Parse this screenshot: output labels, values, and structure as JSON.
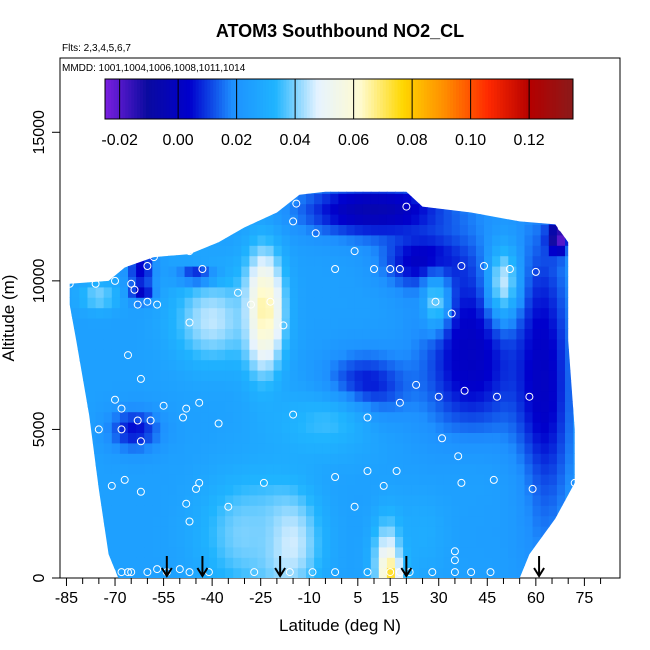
{
  "chart_data": {
    "type": "heatmap",
    "title": "ATOM3 Southbound NO2_CL",
    "flights_note": "Flts: 2,3,4,5,6,7",
    "dates_note": "MMDD: 1001,1004,1006,1008,1011,1014",
    "xlabel": "Latitude (deg N)",
    "ylabel": "Altitude (m)",
    "xlim": [
      -87,
      86
    ],
    "ylim": [
      0,
      17500
    ],
    "x_ticks": [
      -85,
      -70,
      -55,
      -40,
      -25,
      -10,
      5,
      15,
      30,
      45,
      60,
      75
    ],
    "x_tick_labels": [
      "-85",
      "-70",
      "-55",
      "-40",
      "-25",
      "-10",
      "5",
      "15",
      "30",
      "45",
      "60",
      "75"
    ],
    "x_minor_ticks": [
      -80,
      -75,
      -65,
      -60,
      -50,
      -45,
      -35,
      -30,
      -20,
      -15,
      -5,
      0,
      10,
      20,
      25,
      35,
      40,
      50,
      55,
      65,
      70,
      80
    ],
    "y_ticks": [
      0,
      5000,
      10000,
      15000
    ],
    "y_tick_labels": [
      "0",
      "5000",
      "10000",
      "15000"
    ],
    "colorbar": {
      "min": -0.025,
      "max": 0.135,
      "ticks": [
        -0.02,
        0.0,
        0.02,
        0.04,
        0.06,
        0.08,
        0.1,
        0.12
      ],
      "tick_labels": [
        "-0.02",
        "0.00",
        "0.02",
        "0.04",
        "0.06",
        "0.08",
        "0.10",
        "0.12"
      ],
      "colors": [
        "#7b1fe0",
        "#0a0aa0",
        "#0000cd",
        "#1e90ff",
        "#1fb4ff",
        "#e6f3ff",
        "#fffbd0",
        "#ffd700",
        "#ff8c00",
        "#ff2a00",
        "#b40000",
        "#8b1a1a"
      ]
    },
    "profile_marker_latitudes": [
      -54,
      -43,
      -19,
      20,
      61
    ],
    "domain_outline": [
      [
        -84,
        9900
      ],
      [
        -72,
        10000
      ],
      [
        -67,
        10450
      ],
      [
        -58,
        10800
      ],
      [
        -47,
        10900
      ],
      [
        -38,
        11300
      ],
      [
        -30,
        11800
      ],
      [
        -20,
        12300
      ],
      [
        -13,
        12900
      ],
      [
        -5,
        13000
      ],
      [
        8,
        13000
      ],
      [
        20,
        13000
      ],
      [
        25,
        12500
      ],
      [
        40,
        12300
      ],
      [
        55,
        12000
      ],
      [
        66,
        11900
      ],
      [
        70,
        11300
      ],
      [
        70,
        8000
      ],
      [
        72,
        5000
      ],
      [
        72,
        3200
      ],
      [
        66,
        2000
      ],
      [
        58,
        800
      ],
      [
        55,
        0
      ],
      [
        -69,
        0
      ],
      [
        -72,
        800
      ],
      [
        -75,
        3000
      ],
      [
        -78,
        5500
      ],
      [
        -82,
        8000
      ],
      [
        -84,
        9200
      ]
    ],
    "field_background": 0.025,
    "field_features": [
      {
        "lat": -24,
        "alt": 9000,
        "value": 0.07,
        "lat_radius": 6,
        "alt_radius": 2000
      },
      {
        "lat": -40,
        "alt": 8700,
        "value": 0.045,
        "lat_radius": 12,
        "alt_radius": 1500
      },
      {
        "lat": -17,
        "alt": 1200,
        "value": 0.05,
        "lat_radius": 10,
        "alt_radius": 1800
      },
      {
        "lat": -30,
        "alt": 1500,
        "value": 0.04,
        "lat_radius": 14,
        "alt_radius": 2000
      },
      {
        "lat": 15,
        "alt": 500,
        "value": 0.06,
        "lat_radius": 5,
        "alt_radius": 1500
      },
      {
        "lat": 15,
        "alt": 200,
        "value": 0.08,
        "lat_radius": 2,
        "alt_radius": 500
      },
      {
        "lat": 7,
        "alt": 6300,
        "value": 0.0,
        "lat_radius": 13,
        "alt_radius": 1200
      },
      {
        "lat": 40,
        "alt": 7500,
        "value": 0.0,
        "lat_radius": 15,
        "alt_radius": 3500
      },
      {
        "lat": 62,
        "alt": 6500,
        "value": 0.0,
        "lat_radius": 9,
        "alt_radius": 5000
      },
      {
        "lat": 10,
        "alt": 12400,
        "value": -0.005,
        "lat_radius": 22,
        "alt_radius": 900
      },
      {
        "lat": 25,
        "alt": 10700,
        "value": 0.0,
        "lat_radius": 12,
        "alt_radius": 900
      },
      {
        "lat": -64,
        "alt": 5000,
        "value": 0.005,
        "lat_radius": 8,
        "alt_radius": 700
      },
      {
        "lat": -62,
        "alt": 9700,
        "value": 0.0,
        "lat_radius": 4,
        "alt_radius": 400
      },
      {
        "lat": -45,
        "alt": 10200,
        "value": 0.005,
        "lat_radius": 6,
        "alt_radius": 300
      },
      {
        "lat": 50,
        "alt": 10000,
        "value": 0.045,
        "lat_radius": 5,
        "alt_radius": 1300
      },
      {
        "lat": 29,
        "alt": 9300,
        "value": 0.04,
        "lat_radius": 4,
        "alt_radius": 900
      },
      {
        "lat": -5,
        "alt": 5200,
        "value": 0.035,
        "lat_radius": 18,
        "alt_radius": 1200
      },
      {
        "lat": -75,
        "alt": 9500,
        "value": 0.04,
        "lat_radius": 6,
        "alt_radius": 500
      },
      {
        "lat": 67,
        "alt": 11500,
        "value": -0.025,
        "lat_radius": 3,
        "alt_radius": 500
      },
      {
        "lat": 40,
        "alt": 3000,
        "value": 0.025,
        "lat_radius": 18,
        "alt_radius": 2000
      },
      {
        "lat": 25,
        "alt": 1500,
        "value": 0.03,
        "lat_radius": 8,
        "alt_radius": 1500
      },
      {
        "lat": -62,
        "alt": 10500,
        "value": 0.0,
        "lat_radius": 4,
        "alt_radius": 400
      }
    ],
    "observations": [
      [
        -14,
        12600
      ],
      [
        20,
        12500
      ],
      [
        -8,
        11600
      ],
      [
        68,
        11800
      ],
      [
        -47,
        11000
      ],
      [
        -58,
        10800
      ],
      [
        -60,
        10500
      ],
      [
        -15,
        12000
      ],
      [
        4,
        11000
      ],
      [
        10,
        10400
      ],
      [
        -43,
        10400
      ],
      [
        -2,
        10400
      ],
      [
        15,
        10400
      ],
      [
        18,
        10400
      ],
      [
        37,
        10500
      ],
      [
        44,
        10500
      ],
      [
        52,
        10400
      ],
      [
        60,
        10300
      ],
      [
        -84,
        9900
      ],
      [
        -76,
        9900
      ],
      [
        -70,
        10000
      ],
      [
        -65,
        9900
      ],
      [
        -64,
        9700
      ],
      [
        -60,
        9300
      ],
      [
        -57,
        9200
      ],
      [
        -63,
        9200
      ],
      [
        -32,
        9600
      ],
      [
        -28,
        9200
      ],
      [
        -22,
        9300
      ],
      [
        -47,
        8600
      ],
      [
        -18,
        8500
      ],
      [
        29,
        9300
      ],
      [
        34,
        8900
      ],
      [
        -66,
        7500
      ],
      [
        -62,
        6700
      ],
      [
        23,
        6500
      ],
      [
        18,
        5900
      ],
      [
        30,
        6100
      ],
      [
        38,
        6300
      ],
      [
        48,
        6100
      ],
      [
        58,
        6100
      ],
      [
        -70,
        6000
      ],
      [
        -68,
        5700
      ],
      [
        -75,
        5000
      ],
      [
        -68,
        5000
      ],
      [
        -55,
        5800
      ],
      [
        -48,
        5700
      ],
      [
        -44,
        5900
      ],
      [
        -63,
        5300
      ],
      [
        -59,
        5300
      ],
      [
        -49,
        5400
      ],
      [
        -38,
        5200
      ],
      [
        -15,
        5500
      ],
      [
        8,
        5400
      ],
      [
        -62,
        4600
      ],
      [
        31,
        4700
      ],
      [
        36,
        4100
      ],
      [
        8,
        3600
      ],
      [
        17,
        3600
      ],
      [
        -2,
        3400
      ],
      [
        -67,
        3300
      ],
      [
        -71,
        3100
      ],
      [
        -62,
        2900
      ],
      [
        -45,
        3000
      ],
      [
        -44,
        3200
      ],
      [
        -24,
        3200
      ],
      [
        13,
        3100
      ],
      [
        37,
        3200
      ],
      [
        47,
        3300
      ],
      [
        59,
        3000
      ],
      [
        72,
        3200
      ],
      [
        -48,
        2500
      ],
      [
        -35,
        2400
      ],
      [
        4,
        2400
      ],
      [
        -47,
        1900
      ],
      [
        35,
        900
      ],
      [
        35,
        600
      ],
      [
        -71,
        200
      ],
      [
        -68,
        200
      ],
      [
        -66,
        200
      ],
      [
        -65,
        200
      ],
      [
        -60,
        200
      ],
      [
        -57,
        300
      ],
      [
        -54,
        200
      ],
      [
        -50,
        300
      ],
      [
        -47,
        200
      ],
      [
        -41,
        200
      ],
      [
        -27,
        200
      ],
      [
        -16,
        200
      ],
      [
        -9,
        200
      ],
      [
        -2,
        200
      ],
      [
        8,
        200
      ],
      [
        15,
        200
      ],
      [
        18,
        200
      ],
      [
        21,
        200
      ],
      [
        28,
        200
      ],
      [
        35,
        200
      ],
      [
        40,
        200
      ],
      [
        46,
        200
      ]
    ]
  }
}
